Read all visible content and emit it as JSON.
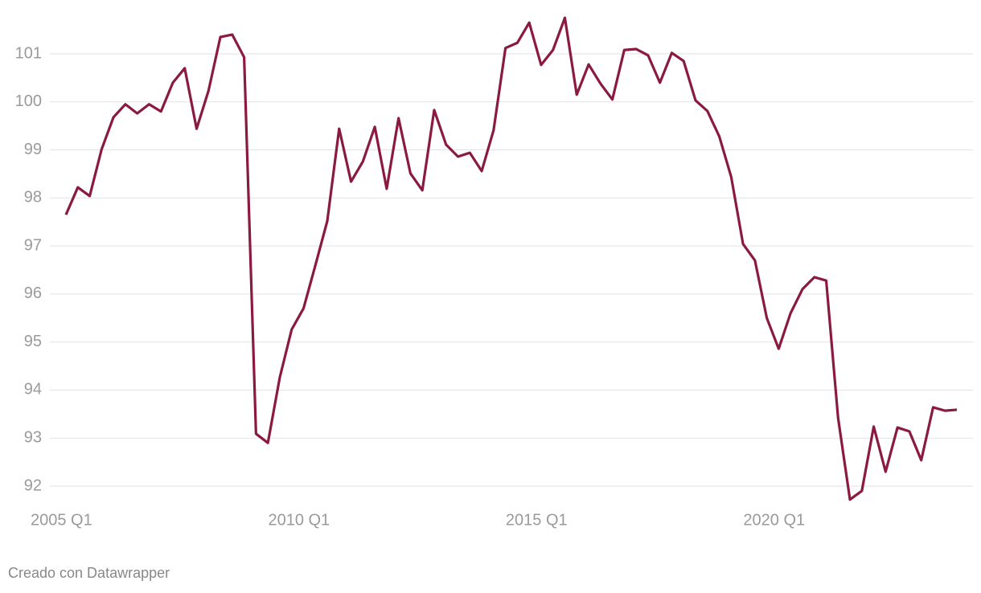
{
  "chart_data": {
    "type": "line",
    "categories": [
      "2005 Q1",
      null,
      null,
      null,
      null,
      null,
      null,
      null,
      null,
      null,
      null,
      null,
      null,
      null,
      null,
      null,
      null,
      null,
      null,
      null,
      "2010 Q1",
      null,
      null,
      null,
      null,
      null,
      null,
      null,
      null,
      null,
      null,
      null,
      null,
      null,
      null,
      null,
      null,
      null,
      null,
      null,
      "2015 Q1",
      null,
      null,
      null,
      null,
      null,
      null,
      null,
      null,
      null,
      null,
      null,
      null,
      null,
      null,
      null,
      null,
      null,
      null,
      null,
      "2020 Q1",
      null,
      null,
      null,
      null,
      null,
      null,
      null,
      null,
      null,
      null,
      null,
      null,
      null,
      null,
      null
    ],
    "series": [
      {
        "color": "#8b1a3f",
        "values": [
          97.65,
          98.22,
          98.04,
          99.01,
          99.68,
          99.95,
          99.76,
          99.95,
          99.8,
          100.4,
          100.7,
          99.44,
          100.23,
          101.35,
          101.4,
          100.93,
          93.09,
          92.9,
          94.26,
          95.26,
          95.7,
          96.6,
          97.52,
          99.44,
          98.34,
          98.76,
          99.48,
          98.19,
          99.66,
          98.51,
          98.16,
          99.83,
          99.11,
          98.86,
          98.94,
          98.56,
          99.41,
          101.12,
          101.23,
          101.65,
          100.77,
          101.08,
          101.75,
          100.15,
          100.78,
          100.38,
          100.05,
          101.08,
          101.1,
          100.97,
          100.4,
          101.02,
          100.85,
          100.03,
          99.81,
          99.28,
          98.44,
          97.04,
          96.7,
          95.5,
          94.86,
          95.6,
          96.1,
          96.35,
          96.28,
          93.42,
          91.72,
          91.9,
          93.24,
          92.3,
          93.22,
          93.14,
          92.54,
          93.64,
          93.57,
          93.59
        ]
      }
    ],
    "ylim": [
      91.6,
      101.85
    ],
    "yticks": [
      92,
      93,
      94,
      95,
      96,
      97,
      98,
      99,
      100,
      101
    ],
    "grid": true,
    "footer": "Creado con Datawrapper"
  }
}
